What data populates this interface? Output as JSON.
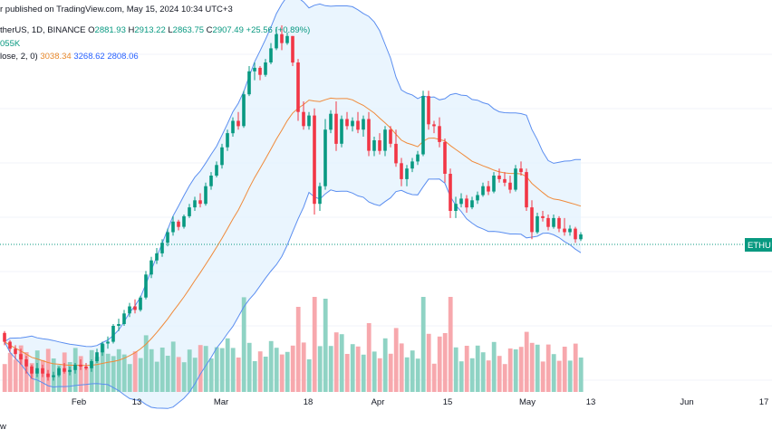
{
  "header": {
    "published": "r published on TradingView.com, May 15, 2024 10:34 UTC+3",
    "symbol": "therUS, 1D, BINANCE",
    "ohlc": {
      "o_label": "O",
      "o": "2881.93",
      "h_label": "H",
      "h": "2913.22",
      "l_label": "L",
      "l": "2863.75",
      "c_label": "C",
      "c": "2907.49",
      "change": "+25.56 (+0.89%)"
    },
    "volume": "055K",
    "bb_label": "lose, 2, 0)",
    "bb_basis": "3038.34",
    "bb_upper": "3268.62",
    "bb_lower": "2808.06"
  },
  "price_tag": "ETHU",
  "footer_text": "w",
  "colors": {
    "up": "#089981",
    "down": "#f23645",
    "upper_band": "#2962ff",
    "basis": "#ff6d00",
    "fill": "#e3f2fd"
  },
  "chart_data": {
    "type": "candlestick",
    "x_tick_labels": [
      "Feb",
      "13",
      "Mar",
      "18",
      "Apr",
      "15",
      "May",
      "13",
      "Jun",
      "17"
    ],
    "series": [
      {
        "type": "candles_ohlc",
        "values": [
          [
            2350,
            2360,
            2280,
            2300
          ],
          [
            2300,
            2310,
            2240,
            2260
          ],
          [
            2260,
            2280,
            2200,
            2230
          ],
          [
            2230,
            2260,
            2170,
            2200
          ],
          [
            2200,
            2220,
            2120,
            2160
          ],
          [
            2160,
            2170,
            2090,
            2120
          ],
          [
            2120,
            2180,
            2100,
            2150
          ],
          [
            2150,
            2170,
            2100,
            2120
          ],
          [
            2120,
            2140,
            2080,
            2100
          ],
          [
            2100,
            2130,
            2080,
            2110
          ],
          [
            2110,
            2160,
            2100,
            2150
          ],
          [
            2150,
            2180,
            2120,
            2130
          ],
          [
            2130,
            2160,
            2110,
            2140
          ],
          [
            2140,
            2180,
            2120,
            2170
          ],
          [
            2170,
            2200,
            2140,
            2160
          ],
          [
            2160,
            2180,
            2140,
            2150
          ],
          [
            2150,
            2200,
            2130,
            2190
          ],
          [
            2190,
            2260,
            2180,
            2240
          ],
          [
            2240,
            2300,
            2220,
            2290
          ],
          [
            2290,
            2330,
            2260,
            2300
          ],
          [
            2300,
            2400,
            2290,
            2390
          ],
          [
            2390,
            2430,
            2360,
            2400
          ],
          [
            2400,
            2480,
            2390,
            2460
          ],
          [
            2460,
            2520,
            2440,
            2500
          ],
          [
            2500,
            2540,
            2460,
            2480
          ],
          [
            2480,
            2560,
            2470,
            2550
          ],
          [
            2550,
            2700,
            2540,
            2680
          ],
          [
            2680,
            2780,
            2660,
            2760
          ],
          [
            2760,
            2830,
            2740,
            2800
          ],
          [
            2800,
            2880,
            2780,
            2860
          ],
          [
            2860,
            2940,
            2840,
            2920
          ],
          [
            2920,
            3010,
            2900,
            2980
          ],
          [
            2980,
            2990,
            2930,
            2950
          ],
          [
            2950,
            3020,
            2940,
            3010
          ],
          [
            3010,
            3080,
            3000,
            3060
          ],
          [
            3060,
            3120,
            3040,
            3100
          ],
          [
            3100,
            3140,
            3060,
            3080
          ],
          [
            3080,
            3200,
            3070,
            3180
          ],
          [
            3180,
            3260,
            3160,
            3240
          ],
          [
            3240,
            3320,
            3230,
            3300
          ],
          [
            3300,
            3420,
            3280,
            3400
          ],
          [
            3400,
            3500,
            3380,
            3480
          ],
          [
            3480,
            3570,
            3460,
            3550
          ],
          [
            3550,
            3600,
            3500,
            3520
          ],
          [
            3520,
            3720,
            3510,
            3700
          ],
          [
            3700,
            3860,
            3690,
            3830
          ],
          [
            3830,
            3880,
            3780,
            3850
          ],
          [
            3850,
            3860,
            3780,
            3810
          ],
          [
            3810,
            3900,
            3800,
            3880
          ],
          [
            3880,
            3990,
            3870,
            3960
          ],
          [
            3960,
            4080,
            3950,
            4040
          ],
          [
            4040,
            4090,
            3950,
            3990
          ],
          [
            3990,
            4050,
            3980,
            4030
          ],
          [
            4030,
            4030,
            3860,
            3880
          ],
          [
            3880,
            3900,
            3550,
            3600
          ],
          [
            3600,
            3660,
            3500,
            3520
          ],
          [
            3520,
            3600,
            3500,
            3580
          ],
          [
            3580,
            3620,
            3020,
            3080
          ],
          [
            3080,
            3200,
            3040,
            3180
          ],
          [
            3180,
            3560,
            3160,
            3500
          ],
          [
            3500,
            3610,
            3480,
            3590
          ],
          [
            3590,
            3660,
            3380,
            3420
          ],
          [
            3420,
            3580,
            3400,
            3560
          ],
          [
            3560,
            3600,
            3500,
            3520
          ],
          [
            3520,
            3570,
            3490,
            3550
          ],
          [
            3550,
            3600,
            3480,
            3500
          ],
          [
            3500,
            3580,
            3460,
            3560
          ],
          [
            3560,
            3600,
            3350,
            3380
          ],
          [
            3380,
            3460,
            3350,
            3440
          ],
          [
            3440,
            3480,
            3360,
            3380
          ],
          [
            3380,
            3520,
            3350,
            3500
          ],
          [
            3500,
            3520,
            3400,
            3420
          ],
          [
            3420,
            3500,
            3290,
            3310
          ],
          [
            3310,
            3340,
            3180,
            3220
          ],
          [
            3220,
            3300,
            3180,
            3280
          ],
          [
            3280,
            3340,
            3260,
            3320
          ],
          [
            3320,
            3380,
            3300,
            3360
          ],
          [
            3360,
            3720,
            3350,
            3690
          ],
          [
            3690,
            3720,
            3500,
            3530
          ],
          [
            3530,
            3550,
            3480,
            3520
          ],
          [
            3520,
            3570,
            3400,
            3430
          ],
          [
            3430,
            3450,
            3200,
            3250
          ],
          [
            3250,
            3280,
            3000,
            3040
          ],
          [
            3040,
            3120,
            3000,
            3080
          ],
          [
            3080,
            3140,
            3060,
            3110
          ],
          [
            3110,
            3130,
            3030,
            3060
          ],
          [
            3060,
            3120,
            3050,
            3100
          ],
          [
            3100,
            3150,
            3080,
            3130
          ],
          [
            3130,
            3200,
            3120,
            3180
          ],
          [
            3180,
            3210,
            3130,
            3150
          ],
          [
            3150,
            3260,
            3140,
            3240
          ],
          [
            3240,
            3280,
            3200,
            3220
          ],
          [
            3220,
            3260,
            3180,
            3200
          ],
          [
            3200,
            3240,
            3140,
            3160
          ],
          [
            3160,
            3300,
            3150,
            3280
          ],
          [
            3280,
            3320,
            3240,
            3260
          ],
          [
            3260,
            3280,
            3040,
            3060
          ],
          [
            3060,
            3100,
            2880,
            2920
          ],
          [
            2920,
            3030,
            2910,
            3010
          ],
          [
            3010,
            3040,
            2980,
            3000
          ],
          [
            3000,
            3020,
            2930,
            2950
          ],
          [
            2950,
            3020,
            2940,
            3000
          ],
          [
            3000,
            3010,
            2920,
            2940
          ],
          [
            2940,
            3000,
            2900,
            2920
          ],
          [
            2920,
            2960,
            2900,
            2940
          ],
          [
            2940,
            2950,
            2860,
            2880
          ],
          [
            2880,
            2920,
            2870,
            2907
          ]
        ]
      },
      {
        "type": "volume_bars"
      },
      {
        "type": "bollinger_bands",
        "length_text": "lose, 2, 0)",
        "basis": 3038.34,
        "upper": 3268.62,
        "lower": 2808.06
      }
    ]
  }
}
